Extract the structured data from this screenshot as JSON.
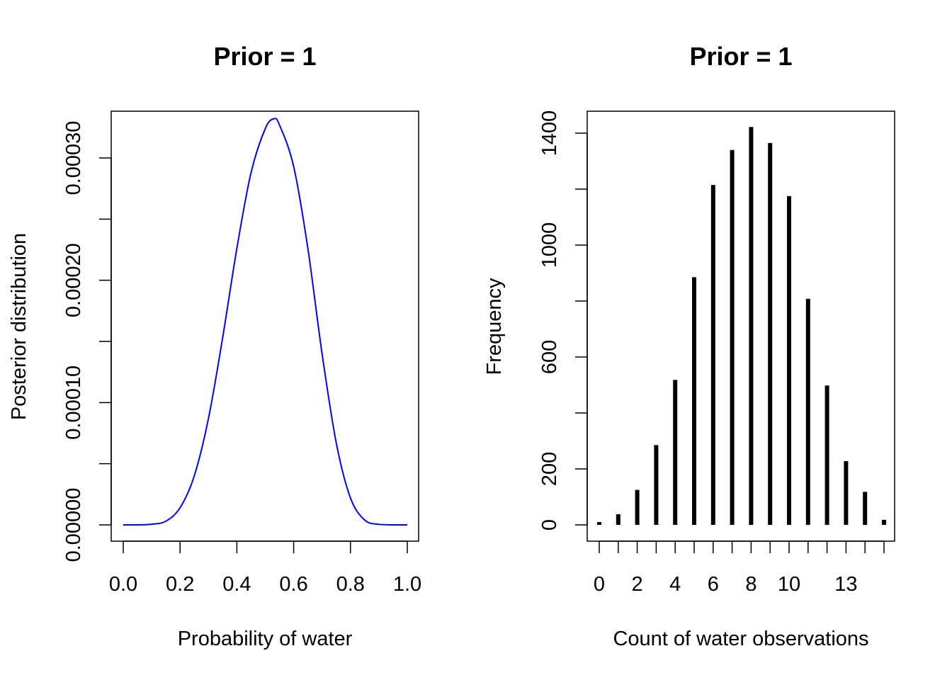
{
  "chart_data": [
    {
      "type": "line",
      "title": "Prior = 1",
      "xlabel": "Probability of water",
      "ylabel": "Posterior distribution",
      "xlim": [
        0,
        1
      ],
      "ylim": [
        0,
        0.00033
      ],
      "x_ticks": [
        0,
        0.2,
        0.4,
        0.6,
        0.8,
        1.0
      ],
      "x_tick_labels": [
        "0.0",
        "0.2",
        "0.4",
        "0.6",
        "0.8",
        "1.0"
      ],
      "y_ticks": [
        0,
        5e-05,
        0.0001,
        0.00015,
        0.0002,
        0.00025,
        0.0003
      ],
      "y_tick_labels": [
        "0.00000",
        "",
        "0.00010",
        "",
        "0.00020",
        "",
        "0.00030"
      ],
      "series": [
        {
          "color": "#0000ff",
          "x": [
            0,
            0.05,
            0.1,
            0.15,
            0.2,
            0.25,
            0.3,
            0.35,
            0.4,
            0.45,
            0.5,
            0.53,
            0.55,
            0.6,
            0.65,
            0.7,
            0.75,
            0.8,
            0.85,
            0.9,
            0.95,
            1.0
          ],
          "y": [
            0,
            0.0,
            5e-07,
            3e-06,
            1.4e-05,
            4e-05,
            8.7e-05,
            0.000153,
            0.000226,
            0.000288,
            0.000324,
            0.000332,
            0.000327,
            0.000293,
            0.000226,
            0.00014,
            6.7e-05,
            2.2e-05,
            4e-06,
            4e-07,
            0.0,
            0
          ]
        }
      ],
      "grid": false
    },
    {
      "type": "bar",
      "title": "Prior = 1",
      "xlabel": "Count of water observations",
      "ylabel": "Frequency",
      "categories": [
        0,
        1,
        2,
        3,
        4,
        5,
        6,
        7,
        8,
        9,
        10,
        11,
        12,
        13,
        14,
        15
      ],
      "values": [
        10,
        38,
        125,
        285,
        518,
        885,
        1215,
        1340,
        1422,
        1365,
        1175,
        808,
        498,
        228,
        118,
        18
      ],
      "x_tick_labels": [
        "0",
        "",
        "2",
        "",
        "4",
        "",
        "6",
        "",
        "8",
        "",
        "10",
        "",
        "",
        "13",
        "",
        ""
      ],
      "y_ticks": [
        0,
        200,
        400,
        600,
        800,
        1000,
        1200,
        1400
      ],
      "y_tick_labels": [
        "0",
        "200",
        "",
        "600",
        "",
        "1000",
        "",
        "1400"
      ],
      "ylim": [
        0,
        1480
      ],
      "color": "#000000",
      "grid": false
    }
  ]
}
